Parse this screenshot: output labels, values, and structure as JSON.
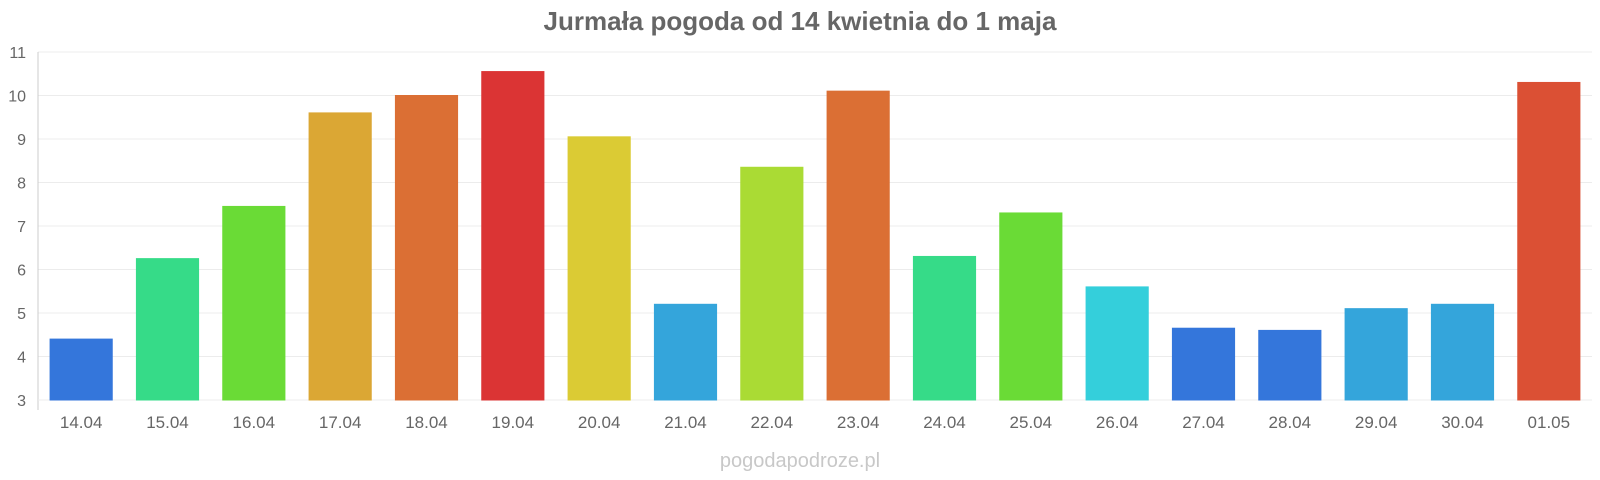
{
  "chart_data": {
    "type": "bar",
    "title": "Jurmała pogoda od 14 kwietnia do 1 maja",
    "xlabel": "",
    "ylabel": "",
    "ylim": [
      3,
      11
    ],
    "yticks": [
      3,
      4,
      5,
      6,
      7,
      8,
      9,
      10,
      11
    ],
    "grid": true,
    "legend": "none",
    "categories": [
      "14.04",
      "15.04",
      "16.04",
      "17.04",
      "18.04",
      "19.04",
      "20.04",
      "21.04",
      "22.04",
      "23.04",
      "24.04",
      "25.04",
      "26.04",
      "27.04",
      "28.04",
      "29.04",
      "30.04",
      "01.05"
    ],
    "values": [
      4.4,
      6.25,
      7.45,
      9.6,
      10.0,
      10.55,
      9.05,
      5.2,
      8.35,
      10.1,
      6.3,
      7.3,
      5.6,
      4.65,
      4.6,
      5.1,
      5.2,
      10.3
    ],
    "colors": [
      "#3476db",
      "#36db88",
      "#6adb36",
      "#dba734",
      "#db6f34",
      "#db3434",
      "#dbcb34",
      "#34a5db",
      "#aadb34",
      "#db6f34",
      "#36db88",
      "#6adb36",
      "#34cfdb",
      "#3476db",
      "#3476db",
      "#34a5db",
      "#34a5db",
      "#db5034"
    ]
  },
  "watermark": "pogodapodroze.pl"
}
